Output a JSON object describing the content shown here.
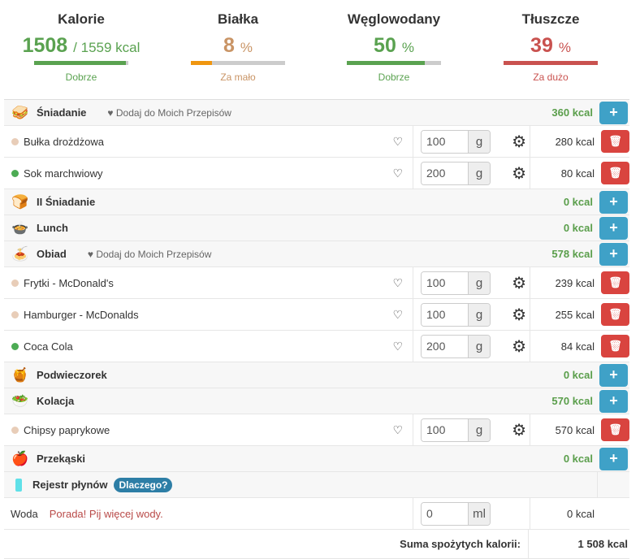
{
  "summary": [
    {
      "title": "Kalorie",
      "value": "1508",
      "suffix": "/ 1559 kcal",
      "status": "Dobrze",
      "progress": 0.97,
      "color": "#5aa250",
      "bar_color": "#5aa250",
      "status_color": "#5aa250"
    },
    {
      "title": "Białka",
      "value": "8",
      "suffix": "%",
      "status": "Za mało",
      "progress": 0.22,
      "color": "#c99465",
      "bar_color": "#f0960f",
      "status_color": "#c99465"
    },
    {
      "title": "Węglowodany",
      "value": "50",
      "suffix": "%",
      "status": "Dobrze",
      "progress": 0.83,
      "color": "#5aa250",
      "bar_color": "#5aa250",
      "status_color": "#5aa250"
    },
    {
      "title": "Tłuszcze",
      "value": "39",
      "suffix": "%",
      "status": "Za dużo",
      "progress": 1.0,
      "color": "#c9524f",
      "bar_color": "#c9524f",
      "status_color": "#c9524f"
    }
  ],
  "add_recipe_label": "Dodaj do Moich Przepisów",
  "meals": [
    {
      "name": "Śniadanie",
      "icon": "sandwich-icon",
      "glyph": "🥪",
      "kcal": "360 kcal",
      "recipe": true,
      "items": [
        {
          "name": "Bułka drożdżowa",
          "dot": "#e8cdb8",
          "amount": "100",
          "unit": "g",
          "kcal": "280 kcal"
        },
        {
          "name": "Sok marchwiowy",
          "dot": "#4cab54",
          "amount": "200",
          "unit": "g",
          "kcal": "80 kcal"
        }
      ]
    },
    {
      "name": "II Śniadanie",
      "icon": "toast-icon",
      "glyph": "🍞",
      "kcal": "0 kcal",
      "recipe": false,
      "items": []
    },
    {
      "name": "Lunch",
      "icon": "soup-icon",
      "glyph": "🍲",
      "kcal": "0 kcal",
      "recipe": false,
      "items": []
    },
    {
      "name": "Obiad",
      "icon": "dinner-plate-icon",
      "glyph": "🍝",
      "kcal": "578 kcal",
      "recipe": true,
      "items": [
        {
          "name": "Frytki - McDonald's",
          "dot": "#e8cdb8",
          "amount": "100",
          "unit": "g",
          "kcal": "239 kcal"
        },
        {
          "name": "Hamburger - McDonalds",
          "dot": "#e8cdb8",
          "amount": "100",
          "unit": "g",
          "kcal": "255 kcal"
        },
        {
          "name": "Coca Cola",
          "dot": "#4cab54",
          "amount": "200",
          "unit": "g",
          "kcal": "84 kcal"
        }
      ]
    },
    {
      "name": "Podwieczorek",
      "icon": "honey-icon",
      "glyph": "🍯",
      "kcal": "0 kcal",
      "recipe": false,
      "items": []
    },
    {
      "name": "Kolacja",
      "icon": "salad-icon",
      "glyph": "🥗",
      "kcal": "570 kcal",
      "recipe": false,
      "items": [
        {
          "name": "Chipsy paprykowe",
          "dot": "#e8cdb8",
          "amount": "100",
          "unit": "g",
          "kcal": "570 kcal"
        }
      ]
    },
    {
      "name": "Przekąski",
      "icon": "apple-icon",
      "glyph": "🍎",
      "kcal": "0 kcal",
      "recipe": false,
      "items": []
    }
  ],
  "fluids": {
    "title": "Rejestr płynów",
    "badge": "Dlaczego?",
    "item": "Woda",
    "tip_bold": "Porada!",
    "tip": "Pij więcej wody.",
    "amount": "0",
    "unit": "ml",
    "kcal": "0 kcal"
  },
  "total": {
    "label": "Suma spożytych kalorii:",
    "value": "1 508 kcal"
  }
}
